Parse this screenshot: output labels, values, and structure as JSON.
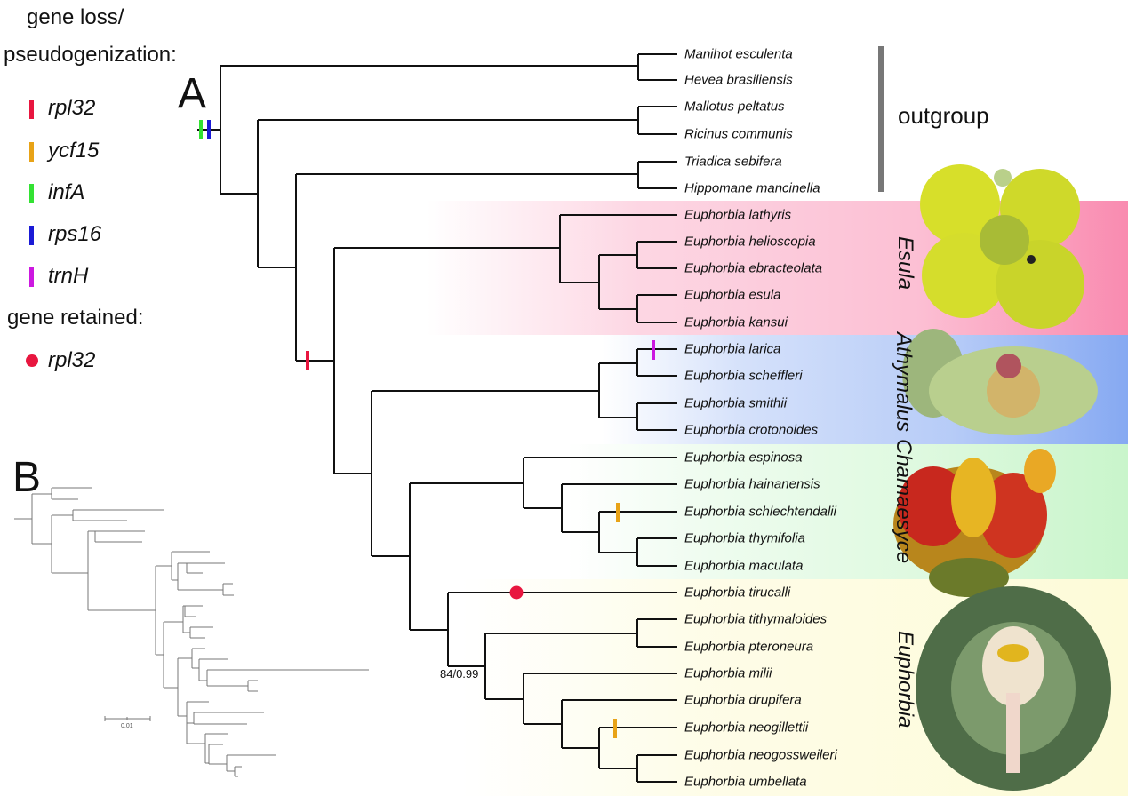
{
  "legend": {
    "title_line1": "gene loss/",
    "title_line2": "pseudogenization:",
    "loss_items": [
      {
        "gene": "rpl32",
        "color": "#e8163f"
      },
      {
        "gene": "ycf15",
        "color": "#e8a317"
      },
      {
        "gene": "infA",
        "color": "#33e233"
      },
      {
        "gene": "rps16",
        "color": "#1a1ad6"
      },
      {
        "gene": "trnH",
        "color": "#cc18e0"
      }
    ],
    "retained_title": "gene retained:",
    "retained_items": [
      {
        "gene": "rpl32",
        "color": "#e8163f"
      }
    ]
  },
  "panel_a": {
    "label": "A",
    "taxa": [
      "Manihot esculenta",
      "Hevea brasiliensis",
      "Mallotus peltatus",
      "Ricinus communis",
      "Triadica sebifera",
      "Hippomane mancinella",
      "Euphorbia lathyris",
      "Euphorbia helioscopia",
      "Euphorbia ebracteolata",
      "Euphorbia esula",
      "Euphorbia kansui",
      "Euphorbia larica",
      "Euphorbia scheffleri",
      "Euphorbia smithii",
      "Euphorbia crotonoides",
      "Euphorbia espinosa",
      "Euphorbia hainanensis",
      "Euphorbia schlechtendalii",
      "Euphorbia thymifolia",
      "Euphorbia maculata",
      "Euphorbia tirucalli",
      "Euphorbia tithymaloides",
      "Euphorbia pteroneura",
      "Euphorbia milii",
      "Euphorbia drupifera",
      "Euphorbia neogillettii",
      "Euphorbia neogossweileri",
      "Euphorbia umbellata"
    ],
    "outgroup_label": "outgroup",
    "clades": [
      {
        "name": "Esula",
        "color": "#f98bb0"
      },
      {
        "name": "Athymalus",
        "color": "#86a9f2"
      },
      {
        "name": "Chamaesyce",
        "color": "#c9f5cb"
      },
      {
        "name": "Euphorbia",
        "color": "#fdfbd8"
      }
    ],
    "support_label": "84/0.99"
  },
  "panel_b": {
    "label": "B",
    "scale_label": "0.01"
  }
}
